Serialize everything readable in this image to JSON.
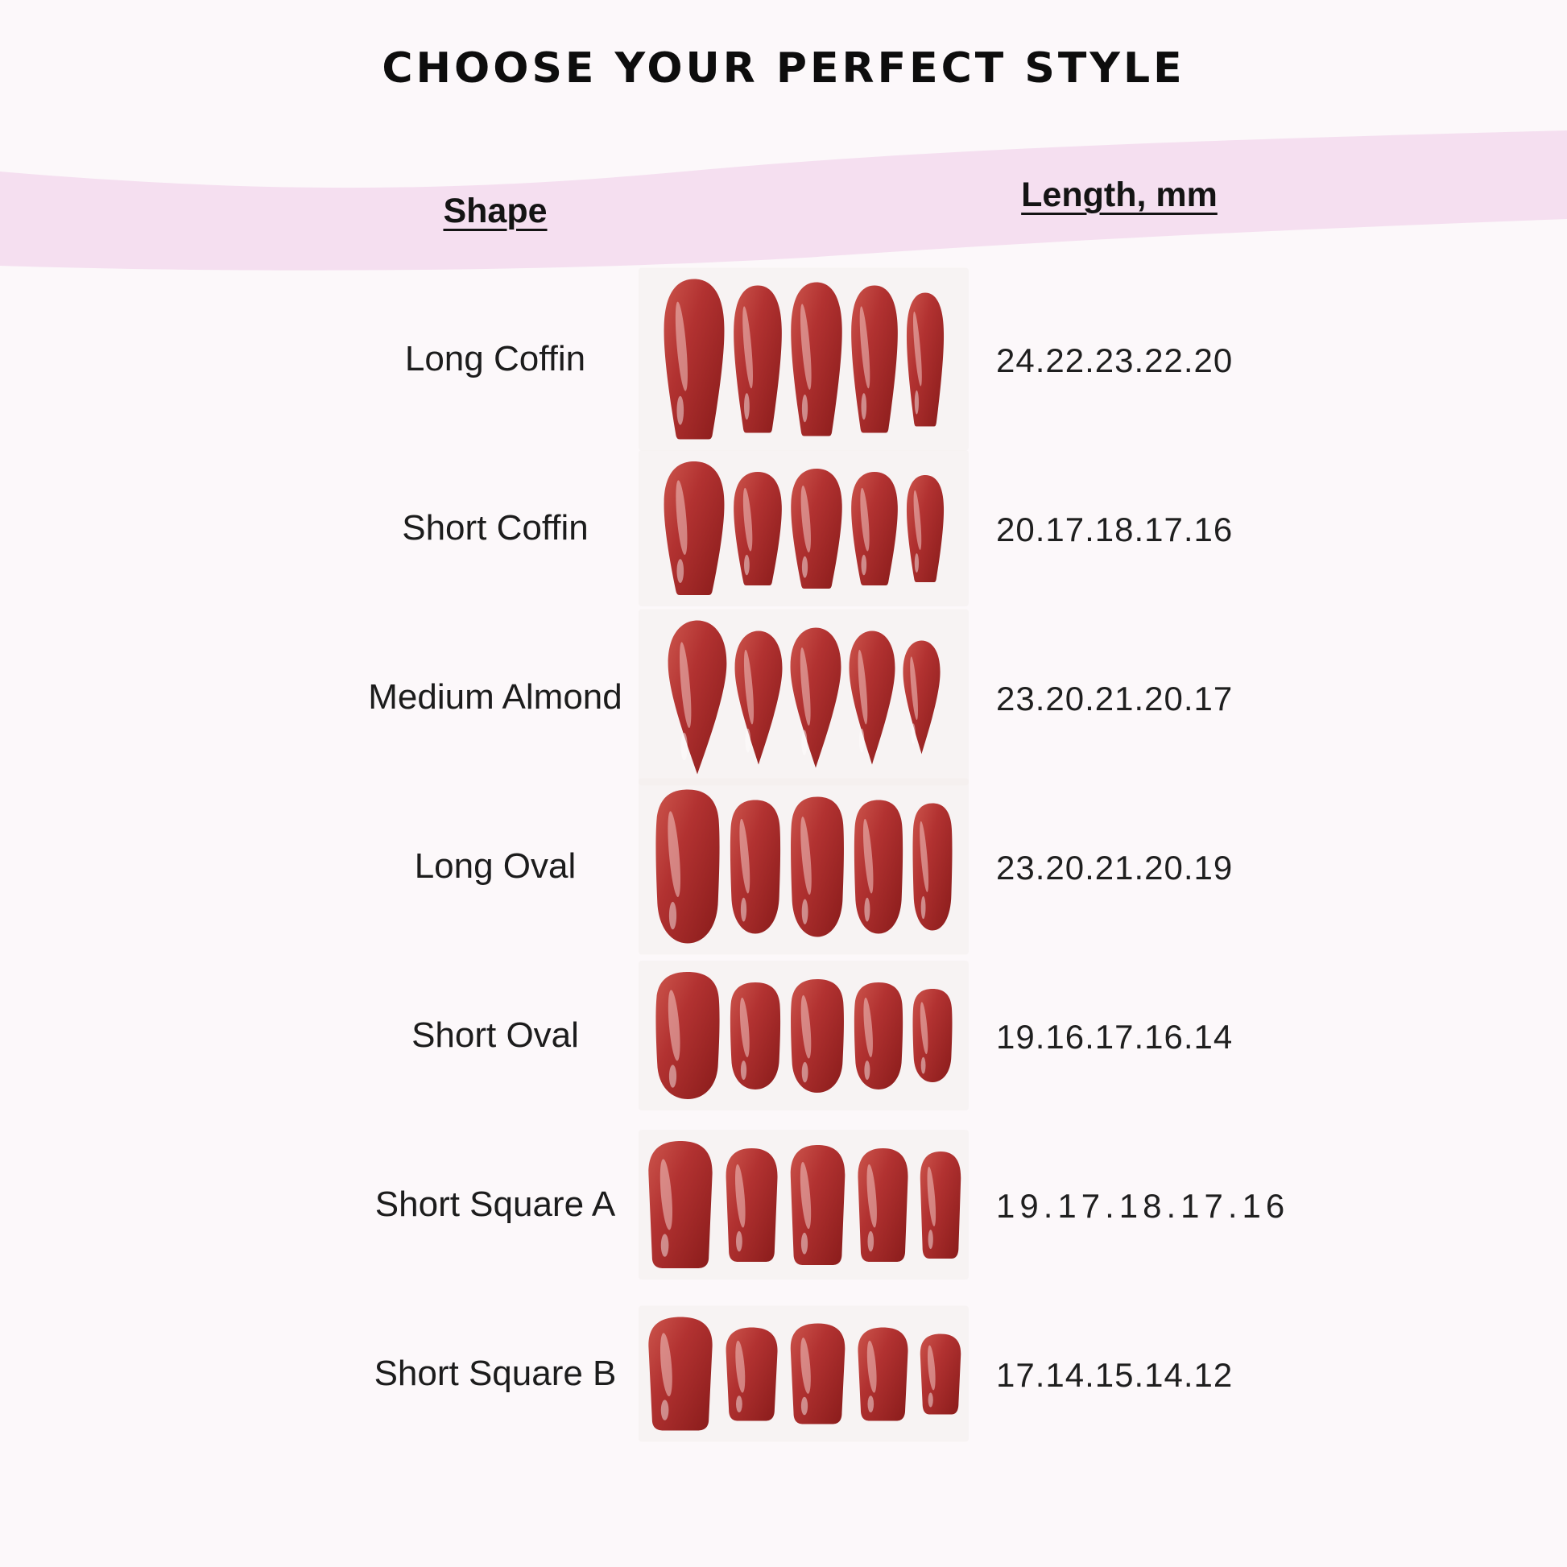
{
  "page": {
    "title": "CHOOSE YOUR PERFECT STYLE",
    "background_color": "#fcf8fa",
    "band_color": "#f5dff0"
  },
  "table": {
    "shape_header": "Shape",
    "length_header": "Length, mm",
    "rows": [
      {
        "shape": "Long Coffin",
        "lengths": "24.22.23.22.20",
        "nail_type": "coffin",
        "mm": [
          24,
          22,
          23,
          22,
          20
        ]
      },
      {
        "shape": "Short Coffin",
        "lengths": "20.17.18.17.16",
        "nail_type": "coffin",
        "mm": [
          20,
          17,
          18,
          17,
          16
        ]
      },
      {
        "shape": "Medium Almond",
        "lengths": "23.20.21.20.17",
        "nail_type": "almond",
        "mm": [
          23,
          20,
          21,
          20,
          17
        ]
      },
      {
        "shape": "Long Oval",
        "lengths": "23.20.21.20.19",
        "nail_type": "oval",
        "mm": [
          23,
          20,
          21,
          20,
          19
        ]
      },
      {
        "shape": "Short Oval",
        "lengths": "19.16.17.16.14",
        "nail_type": "oval",
        "mm": [
          19,
          16,
          17,
          16,
          14
        ]
      },
      {
        "shape": "Short Square A",
        "lengths": "19.17.18.17.16",
        "nail_type": "square",
        "mm": [
          19,
          17,
          18,
          17,
          16
        ]
      },
      {
        "shape": "Short Square B",
        "lengths": "17.14.15.14.12",
        "nail_type": "square",
        "mm": [
          17,
          14,
          15,
          14,
          12
        ]
      }
    ]
  },
  "nail_colors": {
    "light": "#cc554c",
    "mid": "#b23231",
    "dark": "#8c1d1c",
    "highlight": "#f3c8c4"
  },
  "chart_data": {
    "type": "table",
    "title": "CHOOSE YOUR PERFECT STYLE",
    "columns": [
      "Shape",
      "Length, mm"
    ],
    "rows": [
      [
        "Long Coffin",
        "24.22.23.22.20"
      ],
      [
        "Short Coffin",
        "20.17.18.17.16"
      ],
      [
        "Medium Almond",
        "23.20.21.20.17"
      ],
      [
        "Long Oval",
        "23.20.21.20.19"
      ],
      [
        "Short Oval",
        "19.16.17.16.14"
      ],
      [
        "Short Square A",
        "19.17.18.17.16"
      ],
      [
        "Short Square B",
        "17.14.15.14.12"
      ]
    ],
    "lengths_mm": {
      "Long Coffin": [
        24,
        22,
        23,
        22,
        20
      ],
      "Short Coffin": [
        20,
        17,
        18,
        17,
        16
      ],
      "Medium Almond": [
        23,
        20,
        21,
        20,
        17
      ],
      "Long Oval": [
        23,
        20,
        21,
        20,
        19
      ],
      "Short Oval": [
        19,
        16,
        17,
        16,
        14
      ],
      "Short Square A": [
        19,
        17,
        18,
        17,
        16
      ],
      "Short Square B": [
        17,
        14,
        15,
        14,
        12
      ]
    }
  }
}
